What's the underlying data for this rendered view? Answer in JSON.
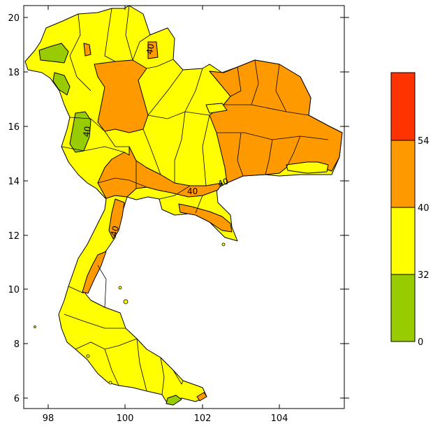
{
  "map": {
    "x_ticks": [
      "98",
      "100",
      "102",
      "104"
    ],
    "y_ticks": [
      "20",
      "18",
      "16",
      "14",
      "12",
      "10",
      "8",
      "6"
    ],
    "contour_labels": [
      "40",
      "40",
      "40",
      "40",
      "40"
    ]
  },
  "legend": {
    "bands": [
      {
        "range": "0-32",
        "color": "#99cc00"
      },
      {
        "range": "32-40",
        "color": "#ffff00"
      },
      {
        "range": "40-54",
        "color": "#ff9900"
      },
      {
        "range": "54+",
        "color": "#ff3300"
      }
    ],
    "tick_labels": [
      "54",
      "40",
      "32",
      "0"
    ]
  },
  "colors": {
    "green": "#99cc00",
    "yellow": "#ffff00",
    "orange": "#ff9900",
    "red": "#ff3300",
    "border": "#000000"
  }
}
